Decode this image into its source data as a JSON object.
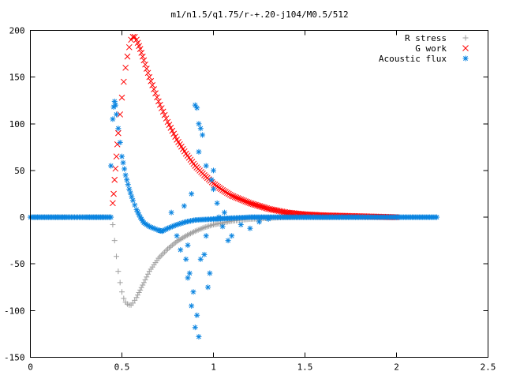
{
  "chart_data": {
    "type": "scatter",
    "title": "m1/n1.5/q1.75/r-+.20-j104/M0.5/512",
    "xlabel": "",
    "ylabel": "",
    "xlim": [
      0,
      2.5
    ],
    "ylim": [
      -150,
      200
    ],
    "grid": false,
    "legend_position": "top-right",
    "x_ticks": [
      {
        "value": 0,
        "label": "0"
      },
      {
        "value": 0.5,
        "label": "0.5"
      },
      {
        "value": 1,
        "label": "1"
      },
      {
        "value": 1.5,
        "label": "1.5"
      },
      {
        "value": 2,
        "label": "2"
      },
      {
        "value": 2.5,
        "label": "2.5"
      }
    ],
    "y_ticks": [
      {
        "value": -150,
        "label": "-150"
      },
      {
        "value": -100,
        "label": "-100"
      },
      {
        "value": -50,
        "label": "-50"
      },
      {
        "value": 0,
        "label": "0"
      },
      {
        "value": 50,
        "label": "50"
      },
      {
        "value": 100,
        "label": "100"
      },
      {
        "value": 150,
        "label": "150"
      },
      {
        "value": 200,
        "label": "200"
      }
    ],
    "series": [
      {
        "name": "R stress",
        "marker": "plus",
        "color": "#a0a0a0",
        "points": [
          [
            0,
            0
          ],
          [
            0.1,
            0
          ],
          [
            0.2,
            0
          ],
          [
            0.3,
            0
          ],
          [
            0.4,
            0
          ],
          [
            0.44,
            0
          ],
          [
            0.45,
            -8
          ],
          [
            0.46,
            -25
          ],
          [
            0.47,
            -42
          ],
          [
            0.48,
            -58
          ],
          [
            0.49,
            -70
          ],
          [
            0.5,
            -80
          ],
          [
            0.51,
            -87
          ],
          [
            0.52,
            -91
          ],
          [
            0.53,
            -93
          ],
          [
            0.54,
            -94
          ],
          [
            0.55,
            -94
          ],
          [
            0.56,
            -92
          ],
          [
            0.58,
            -86
          ],
          [
            0.6,
            -78
          ],
          [
            0.62,
            -70
          ],
          [
            0.65,
            -58
          ],
          [
            0.7,
            -44
          ],
          [
            0.75,
            -34
          ],
          [
            0.8,
            -26
          ],
          [
            0.85,
            -20
          ],
          [
            0.9,
            -15
          ],
          [
            0.95,
            -11
          ],
          [
            1.0,
            -8
          ],
          [
            1.1,
            -4
          ],
          [
            1.2,
            -2
          ],
          [
            1.3,
            -1
          ],
          [
            1.4,
            0
          ],
          [
            1.5,
            0
          ],
          [
            1.6,
            0
          ],
          [
            1.8,
            0
          ],
          [
            2.0,
            0
          ]
        ]
      },
      {
        "name": "G work",
        "marker": "cross",
        "color": "#ff0000",
        "points": [
          [
            0.45,
            15
          ],
          [
            0.455,
            25
          ],
          [
            0.46,
            40
          ],
          [
            0.465,
            52
          ],
          [
            0.47,
            65
          ],
          [
            0.475,
            78
          ],
          [
            0.48,
            90
          ],
          [
            0.49,
            110
          ],
          [
            0.5,
            128
          ],
          [
            0.51,
            145
          ],
          [
            0.52,
            160
          ],
          [
            0.53,
            172
          ],
          [
            0.54,
            182
          ],
          [
            0.55,
            190
          ],
          [
            0.56,
            193
          ],
          [
            0.57,
            193
          ],
          [
            0.58,
            190
          ],
          [
            0.6,
            180
          ],
          [
            0.62,
            168
          ],
          [
            0.65,
            150
          ],
          [
            0.7,
            124
          ],
          [
            0.75,
            102
          ],
          [
            0.8,
            83
          ],
          [
            0.85,
            68
          ],
          [
            0.9,
            55
          ],
          [
            0.95,
            45
          ],
          [
            1.0,
            36
          ],
          [
            1.05,
            29
          ],
          [
            1.1,
            23
          ],
          [
            1.2,
            15
          ],
          [
            1.3,
            9
          ],
          [
            1.4,
            5
          ],
          [
            1.5,
            3
          ],
          [
            1.6,
            2
          ],
          [
            1.8,
            1
          ],
          [
            2.0,
            0
          ]
        ]
      },
      {
        "name": "Acoustic flux",
        "marker": "star",
        "color": "#0a84e0",
        "points": [
          [
            0,
            0
          ],
          [
            0.1,
            0
          ],
          [
            0.2,
            0
          ],
          [
            0.3,
            0
          ],
          [
            0.4,
            0
          ],
          [
            0.44,
            0
          ],
          [
            0.44,
            55
          ],
          [
            0.45,
            105
          ],
          [
            0.455,
            118
          ],
          [
            0.46,
            124
          ],
          [
            0.465,
            120
          ],
          [
            0.47,
            110
          ],
          [
            0.48,
            95
          ],
          [
            0.49,
            80
          ],
          [
            0.5,
            65
          ],
          [
            0.52,
            45
          ],
          [
            0.54,
            30
          ],
          [
            0.56,
            18
          ],
          [
            0.58,
            8
          ],
          [
            0.6,
            0
          ],
          [
            0.62,
            -6
          ],
          [
            0.65,
            -10
          ],
          [
            0.7,
            -14
          ],
          [
            0.72,
            -15
          ],
          [
            0.75,
            -12
          ],
          [
            0.8,
            -8
          ],
          [
            0.85,
            -5
          ],
          [
            0.9,
            -3
          ],
          [
            1.0,
            -2
          ],
          [
            1.1,
            -1
          ],
          [
            1.2,
            0
          ],
          [
            1.5,
            0
          ],
          [
            1.8,
            0
          ],
          [
            2.0,
            0
          ],
          [
            2.22,
            0
          ],
          [
            0.77,
            5
          ],
          [
            0.8,
            -20
          ],
          [
            0.82,
            -35
          ],
          [
            0.84,
            12
          ],
          [
            0.85,
            -45
          ],
          [
            0.86,
            -65
          ],
          [
            0.87,
            -60
          ],
          [
            0.88,
            -95
          ],
          [
            0.89,
            -80
          ],
          [
            0.9,
            -118
          ],
          [
            0.91,
            -105
          ],
          [
            0.92,
            -128
          ],
          [
            0.9,
            120
          ],
          [
            0.91,
            117
          ],
          [
            0.92,
            100
          ],
          [
            0.93,
            95
          ],
          [
            0.94,
            88
          ],
          [
            0.92,
            70
          ],
          [
            0.96,
            55
          ],
          [
            0.95,
            -40
          ],
          [
            0.97,
            -75
          ],
          [
            0.98,
            -60
          ],
          [
            1.0,
            30
          ],
          [
            1.02,
            15
          ],
          [
            1.05,
            -10
          ],
          [
            1.08,
            -25
          ],
          [
            1.1,
            -20
          ],
          [
            1.15,
            -8
          ],
          [
            1.2,
            -12
          ],
          [
            1.25,
            -5
          ],
          [
            1.3,
            -2
          ],
          [
            1.0,
            50
          ],
          [
            0.99,
            40
          ],
          [
            0.93,
            -45
          ],
          [
            0.96,
            -20
          ],
          [
            1.03,
            0
          ],
          [
            1.06,
            5
          ],
          [
            0.88,
            25
          ],
          [
            0.86,
            -30
          ]
        ]
      }
    ]
  }
}
